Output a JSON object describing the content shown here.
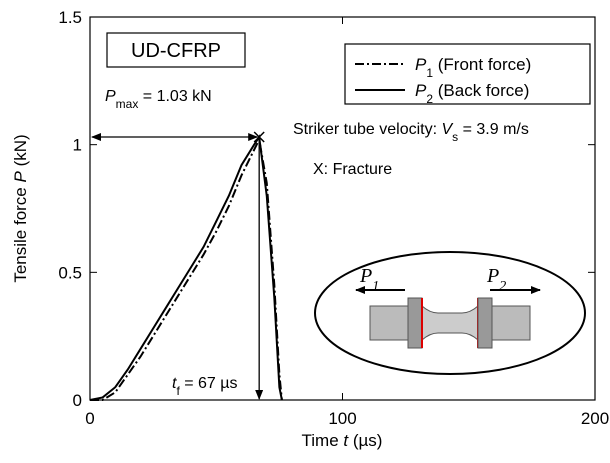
{
  "chart_data": {
    "type": "line",
    "x_label": [
      {
        "text": "Time  "
      },
      {
        "text": "t",
        "italic": true
      },
      {
        "text": "  (µs)"
      }
    ],
    "y_label": [
      {
        "text": "Tensile  force   "
      },
      {
        "text": "P",
        "italic": true
      },
      {
        "text": "  (kN)"
      }
    ],
    "box_label": "UD-CFRP",
    "x": [
      0,
      5,
      10,
      15,
      20,
      25,
      30,
      35,
      40,
      45,
      50,
      55,
      60,
      65,
      67,
      70,
      73,
      75,
      76
    ],
    "series": [
      {
        "name": "P1 (Front force)",
        "color": "#000000",
        "dash": "9 3 2 3",
        "values": [
          0,
          0,
          0.03,
          0.1,
          0.17,
          0.25,
          0.33,
          0.41,
          0.49,
          0.57,
          0.66,
          0.76,
          0.88,
          0.98,
          1.02,
          0.85,
          0.45,
          0.1,
          0
        ]
      },
      {
        "name": "P2 (Back force)",
        "color": "#000000",
        "dash": "none",
        "values": [
          0,
          0.01,
          0.05,
          0.12,
          0.2,
          0.28,
          0.36,
          0.44,
          0.52,
          0.6,
          0.7,
          0.8,
          0.92,
          1.0,
          1.03,
          0.8,
          0.4,
          0.05,
          0
        ]
      }
    ],
    "fracture_point": {
      "x": 67,
      "y": 1.03
    },
    "annotations": [
      [
        {
          "text": "P",
          "italic": true
        },
        {
          "text": "max",
          "sub": true
        },
        {
          "text": " = 1.03 kN"
        }
      ],
      [
        {
          "text": "Striker tube velocity: "
        },
        {
          "text": "V",
          "italic": true
        },
        {
          "text": "s",
          "sub": true
        },
        {
          "text": " = 3.9 m/s"
        }
      ],
      [
        {
          "text": "X: Fracture"
        }
      ],
      [
        {
          "text": "t",
          "italic": true
        },
        {
          "text": "f",
          "sub": true
        },
        {
          "text": " = 67 µs"
        }
      ]
    ],
    "inset_labels": [
      "P1",
      "P2"
    ],
    "xlim": [
      0,
      200
    ],
    "ylim": [
      0,
      1.5
    ],
    "xticks": [
      0,
      100,
      200
    ],
    "yticks": [
      0,
      0.5,
      1,
      1.5
    ],
    "grid": false
  }
}
